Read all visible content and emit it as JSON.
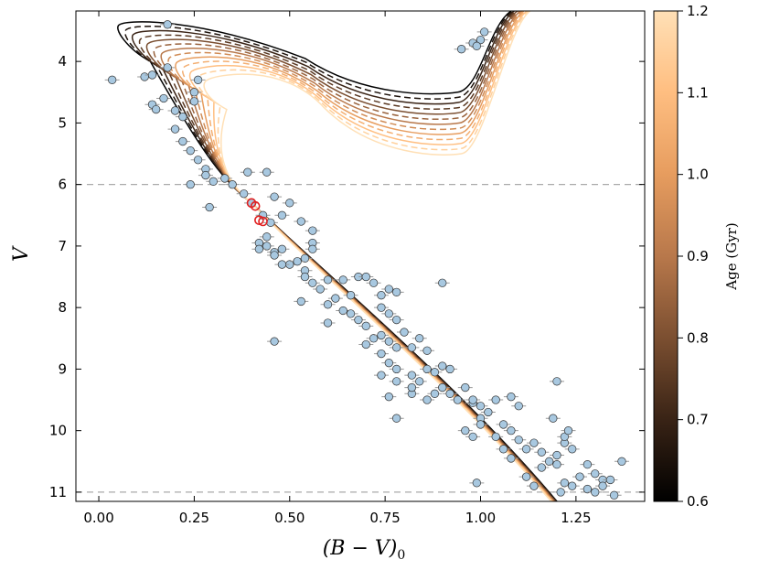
{
  "chart_data": {
    "type": "scatter",
    "title": "",
    "xlabel_main": "(B − V)",
    "xlabel_sub": "0",
    "ylabel": "V",
    "xlim": [
      -0.06,
      1.43
    ],
    "ylim": [
      11.15,
      3.18
    ],
    "y_inverted": true,
    "x_ticks": [
      0.0,
      0.25,
      0.5,
      0.75,
      1.0,
      1.25
    ],
    "x_tick_labels": [
      "0.00",
      "0.25",
      "0.50",
      "0.75",
      "1.00",
      "1.25"
    ],
    "y_ticks": [
      4,
      5,
      6,
      7,
      8,
      9,
      10,
      11
    ],
    "y_tick_labels": [
      "4",
      "5",
      "6",
      "7",
      "8",
      "9",
      "10",
      "11"
    ],
    "reference_lines": [
      {
        "axis": "y",
        "value": 6.0,
        "style": "dashed",
        "color": "#aaaaaa"
      },
      {
        "axis": "y",
        "value": 11.0,
        "style": "dashed",
        "color": "#aaaaaa"
      }
    ],
    "colorbar": {
      "label": "Age (Gyr)",
      "min": 0.6,
      "max": 1.2,
      "ticks": [
        0.6,
        0.7,
        0.8,
        0.9,
        1.0,
        1.1,
        1.2
      ],
      "tick_labels": [
        "0.6",
        "0.7",
        "0.8",
        "0.9",
        "1.0",
        "1.1",
        "1.2"
      ],
      "colormap": [
        "#000000",
        "#3a2416",
        "#7a4e30",
        "#b8784b",
        "#e79d5f",
        "#ffbf82",
        "#ffe0b6"
      ]
    },
    "isochrones": [
      {
        "age": 0.6,
        "style": "solid"
      },
      {
        "age": 0.65,
        "style": "dashed"
      },
      {
        "age": 0.7,
        "style": "solid"
      },
      {
        "age": 0.75,
        "style": "dashed"
      },
      {
        "age": 0.8,
        "style": "solid"
      },
      {
        "age": 0.85,
        "style": "dashed"
      },
      {
        "age": 0.9,
        "style": "solid"
      },
      {
        "age": 0.95,
        "style": "dashed"
      },
      {
        "age": 1.0,
        "style": "solid"
      },
      {
        "age": 1.05,
        "style": "dashed"
      },
      {
        "age": 1.1,
        "style": "solid"
      },
      {
        "age": 1.15,
        "style": "dashed"
      },
      {
        "age": 1.2,
        "style": "solid"
      }
    ],
    "stars": {
      "marker_color": "#a8c8e0",
      "error_color": "#999999",
      "points": [
        [
          0.18,
          3.4
        ],
        [
          0.035,
          4.3
        ],
        [
          0.12,
          4.25
        ],
        [
          0.14,
          4.22
        ],
        [
          0.18,
          4.1
        ],
        [
          0.26,
          4.3
        ],
        [
          0.14,
          4.7
        ],
        [
          0.15,
          4.78
        ],
        [
          0.17,
          4.6
        ],
        [
          0.2,
          4.8
        ],
        [
          0.22,
          4.9
        ],
        [
          0.25,
          4.5
        ],
        [
          0.25,
          4.65
        ],
        [
          0.2,
          5.1
        ],
        [
          0.22,
          5.3
        ],
        [
          0.24,
          5.45
        ],
        [
          0.26,
          5.6
        ],
        [
          0.28,
          5.75
        ],
        [
          0.24,
          6.0
        ],
        [
          0.28,
          5.85
        ],
        [
          0.3,
          5.95
        ],
        [
          0.33,
          5.9
        ],
        [
          0.35,
          6.0
        ],
        [
          0.38,
          6.15
        ],
        [
          0.39,
          5.8
        ],
        [
          0.44,
          5.8
        ],
        [
          0.29,
          6.37
        ],
        [
          0.4,
          6.3
        ],
        [
          0.43,
          6.5
        ],
        [
          0.45,
          6.62
        ],
        [
          0.48,
          6.5
        ],
        [
          0.46,
          6.2
        ],
        [
          0.5,
          6.3
        ],
        [
          0.53,
          6.6
        ],
        [
          0.56,
          6.75
        ],
        [
          0.56,
          6.95
        ],
        [
          0.56,
          7.05
        ],
        [
          0.54,
          7.2
        ],
        [
          0.42,
          6.95
        ],
        [
          0.44,
          6.85
        ],
        [
          0.46,
          7.1
        ],
        [
          0.48,
          7.05
        ],
        [
          0.5,
          7.3
        ],
        [
          0.52,
          7.25
        ],
        [
          0.44,
          7.0
        ],
        [
          0.42,
          7.05
        ],
        [
          0.46,
          7.15
        ],
        [
          0.48,
          7.3
        ],
        [
          0.54,
          7.4
        ],
        [
          0.54,
          7.5
        ],
        [
          0.56,
          7.6
        ],
        [
          0.58,
          7.7
        ],
        [
          0.6,
          7.55
        ],
        [
          0.64,
          7.55
        ],
        [
          0.68,
          7.5
        ],
        [
          0.7,
          7.5
        ],
        [
          0.72,
          7.6
        ],
        [
          0.66,
          7.8
        ],
        [
          0.62,
          7.85
        ],
        [
          0.6,
          7.95
        ],
        [
          0.64,
          8.05
        ],
        [
          0.66,
          8.1
        ],
        [
          0.68,
          8.2
        ],
        [
          0.7,
          8.3
        ],
        [
          0.74,
          7.8
        ],
        [
          0.76,
          7.7
        ],
        [
          0.78,
          7.75
        ],
        [
          0.74,
          8.0
        ],
        [
          0.76,
          8.1
        ],
        [
          0.78,
          8.2
        ],
        [
          0.6,
          8.25
        ],
        [
          0.53,
          7.9
        ],
        [
          0.46,
          8.55
        ],
        [
          0.7,
          8.6
        ],
        [
          0.72,
          8.5
        ],
        [
          0.74,
          8.45
        ],
        [
          0.76,
          8.55
        ],
        [
          0.78,
          8.65
        ],
        [
          0.8,
          8.4
        ],
        [
          0.82,
          8.65
        ],
        [
          0.84,
          8.5
        ],
        [
          0.86,
          8.7
        ],
        [
          0.74,
          8.75
        ],
        [
          0.76,
          8.9
        ],
        [
          0.78,
          9.0
        ],
        [
          0.74,
          9.1
        ],
        [
          0.78,
          9.2
        ],
        [
          0.82,
          9.1
        ],
        [
          0.86,
          9.0
        ],
        [
          0.88,
          9.05
        ],
        [
          0.84,
          9.2
        ],
        [
          0.82,
          9.4
        ],
        [
          0.86,
          9.5
        ],
        [
          0.88,
          9.4
        ],
        [
          0.9,
          9.3
        ],
        [
          0.92,
          9.4
        ],
        [
          0.94,
          9.5
        ],
        [
          0.96,
          9.3
        ],
        [
          0.9,
          8.95
        ],
        [
          0.92,
          9.0
        ],
        [
          0.9,
          7.6
        ],
        [
          0.98,
          9.55
        ],
        [
          1.0,
          9.6
        ],
        [
          1.02,
          9.7
        ],
        [
          1.0,
          9.8
        ],
        [
          0.96,
          10.0
        ],
        [
          0.98,
          10.1
        ],
        [
          1.0,
          9.9
        ],
        [
          1.04,
          9.5
        ],
        [
          1.08,
          9.45
        ],
        [
          1.1,
          9.6
        ],
        [
          1.06,
          9.9
        ],
        [
          1.08,
          10.0
        ],
        [
          1.1,
          10.15
        ],
        [
          1.04,
          10.1
        ],
        [
          1.06,
          10.3
        ],
        [
          1.08,
          10.45
        ],
        [
          1.12,
          10.3
        ],
        [
          1.14,
          10.2
        ],
        [
          1.16,
          10.35
        ],
        [
          1.18,
          10.5
        ],
        [
          1.2,
          10.55
        ],
        [
          1.2,
          10.4
        ],
        [
          1.22,
          10.2
        ],
        [
          1.24,
          10.3
        ],
        [
          1.28,
          10.55
        ],
        [
          1.3,
          10.7
        ],
        [
          1.32,
          10.8
        ],
        [
          1.22,
          10.85
        ],
        [
          1.24,
          10.9
        ],
        [
          1.26,
          10.75
        ],
        [
          1.28,
          10.95
        ],
        [
          1.3,
          11.0
        ],
        [
          1.32,
          10.9
        ],
        [
          1.34,
          10.8
        ],
        [
          1.35,
          11.05
        ],
        [
          1.37,
          10.5
        ],
        [
          1.2,
          9.2
        ],
        [
          1.19,
          9.8
        ],
        [
          0.99,
          10.85
        ],
        [
          1.12,
          10.75
        ],
        [
          1.14,
          10.9
        ],
        [
          1.16,
          10.6
        ],
        [
          1.21,
          11.0
        ],
        [
          1.22,
          10.1
        ],
        [
          1.23,
          10.0
        ],
        [
          0.78,
          9.8
        ],
        [
          0.76,
          9.45
        ],
        [
          0.82,
          9.3
        ],
        [
          0.98,
          9.5
        ],
        [
          0.95,
          3.8
        ],
        [
          0.98,
          3.7
        ],
        [
          1.0,
          3.65
        ],
        [
          1.01,
          3.52
        ],
        [
          0.99,
          3.75
        ]
      ]
    },
    "highlighted_stars": {
      "marker_color": "#e02020",
      "points": [
        [
          0.4,
          6.3
        ],
        [
          0.41,
          6.35
        ],
        [
          0.42,
          6.58
        ],
        [
          0.43,
          6.6
        ]
      ]
    }
  }
}
